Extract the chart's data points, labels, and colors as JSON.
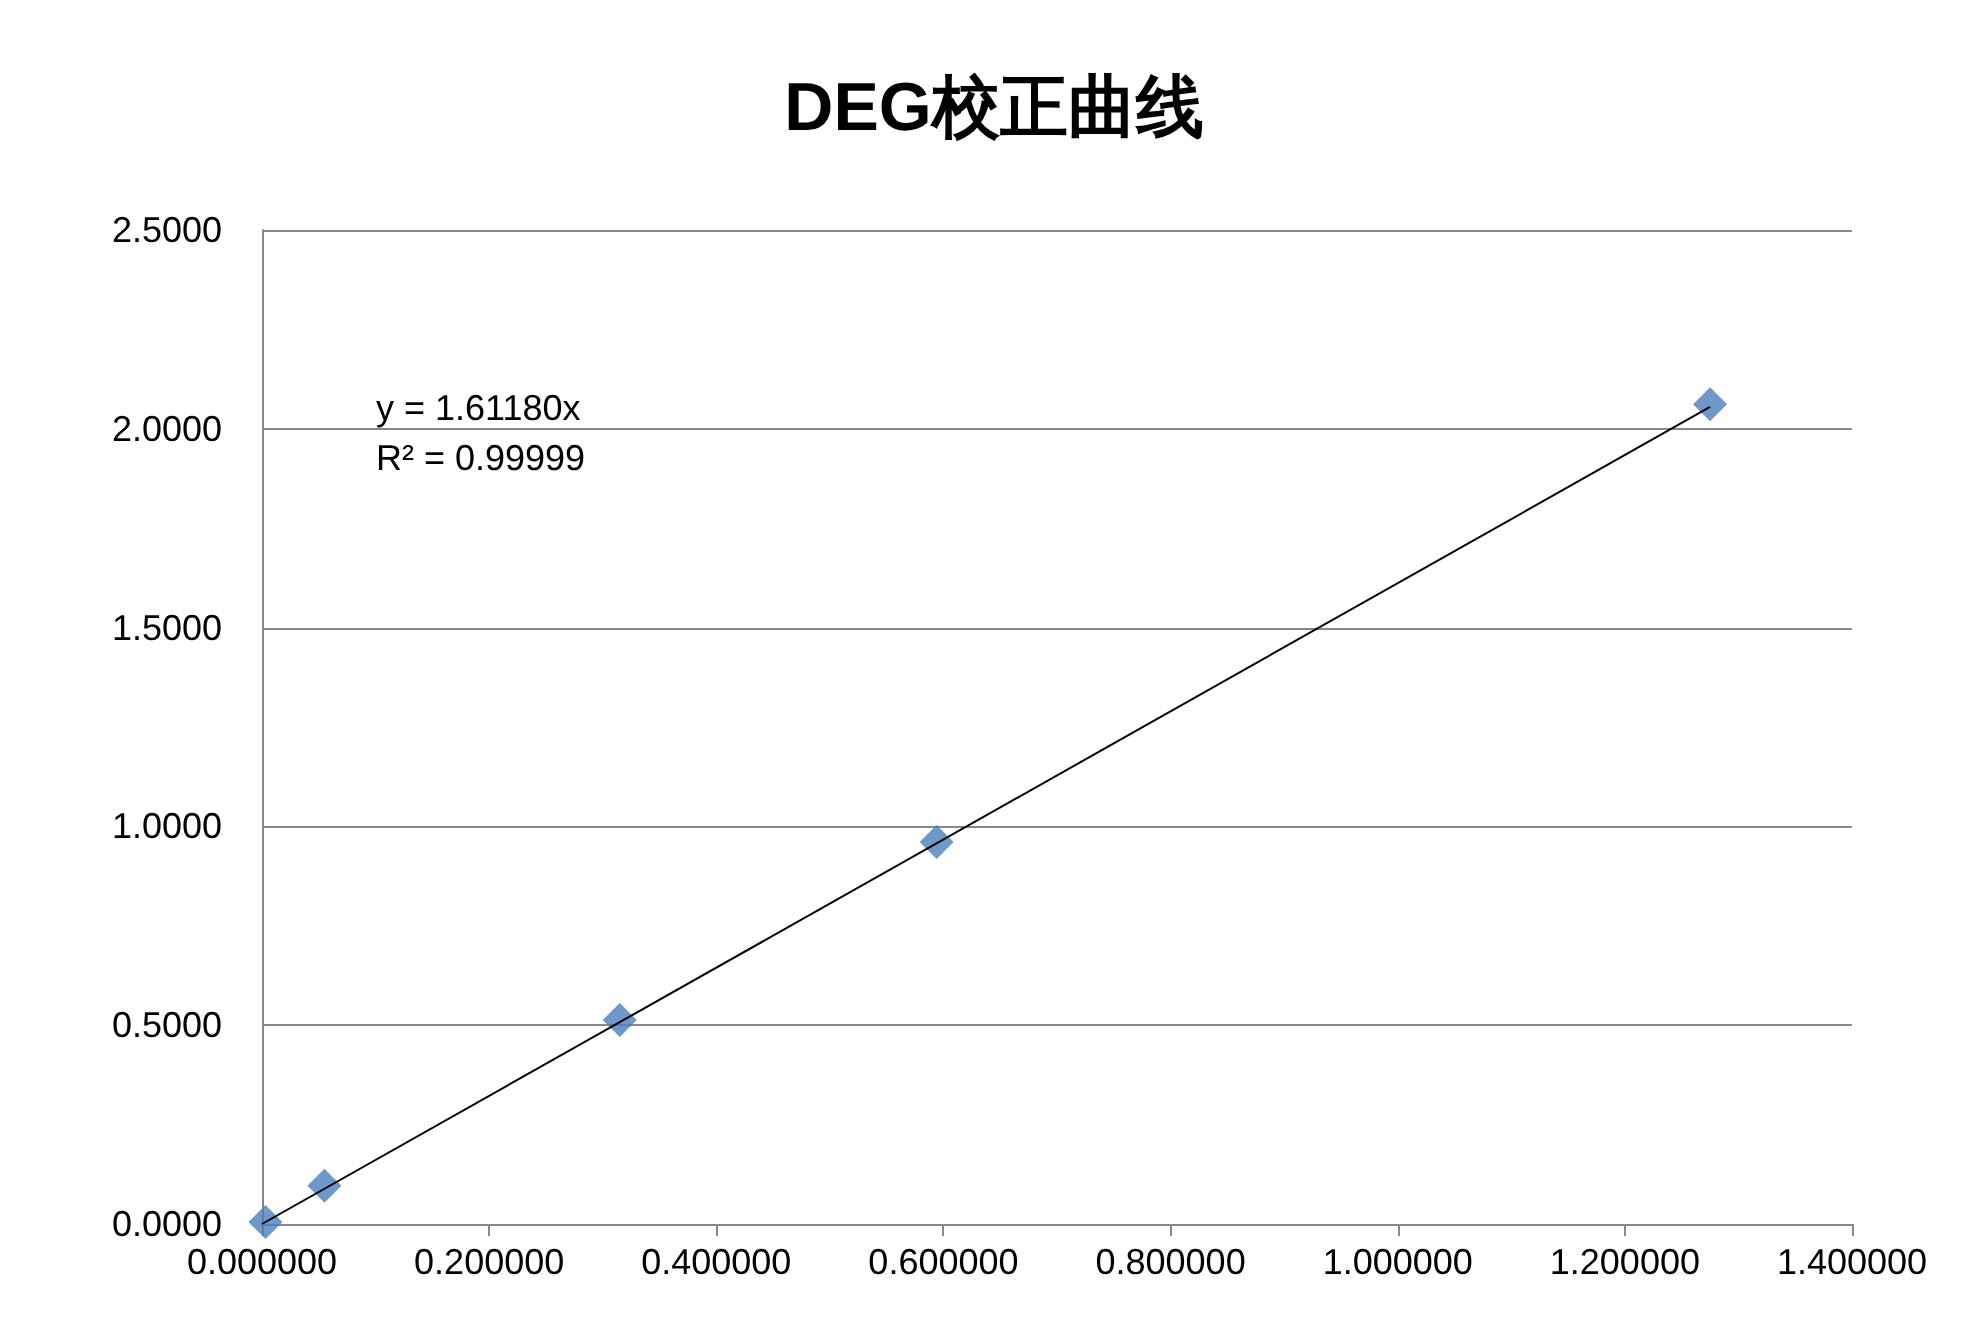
{
  "chart_data": {
    "type": "scatter",
    "title": "DEG校正曲线",
    "series": [
      {
        "color": "#4a7ebb",
        "marker": "diamond",
        "x": [
          0.003,
          0.055,
          0.315,
          0.594,
          1.275
        ],
        "values": [
          0.005,
          0.096,
          0.513,
          0.961,
          2.062
        ]
      },
      {
        "type": "line",
        "color": "#000000",
        "marker": "none",
        "x": [
          0,
          1.275
        ],
        "values": [
          0,
          2.055
        ]
      }
    ],
    "xlim": [
      0,
      1.4
    ],
    "xticks": [
      {
        "value": 0,
        "label": "0.000000"
      },
      {
        "value": 0.2,
        "label": "0.200000"
      },
      {
        "value": 0.4,
        "label": "0.400000"
      },
      {
        "value": 0.6,
        "label": "0.600000"
      },
      {
        "value": 0.8,
        "label": "0.800000"
      },
      {
        "value": 1.0,
        "label": "1.000000"
      },
      {
        "value": 1.2,
        "label": "1.200000"
      },
      {
        "value": 1.4,
        "label": "1.400000"
      }
    ],
    "ylim": [
      0,
      2.5
    ],
    "yticks": [
      {
        "value": 0,
        "label": "0.0000"
      },
      {
        "value": 0.5,
        "label": "0.5000"
      },
      {
        "value": 1.0,
        "label": "1.0000"
      },
      {
        "value": 1.5,
        "label": "1.5000"
      },
      {
        "value": 2.0,
        "label": "2.0000"
      },
      {
        "value": 2.5,
        "label": "2.5000"
      }
    ],
    "annotations": [
      "y = 1.61180x",
      "R² = 0.99999"
    ],
    "grid": "y"
  }
}
